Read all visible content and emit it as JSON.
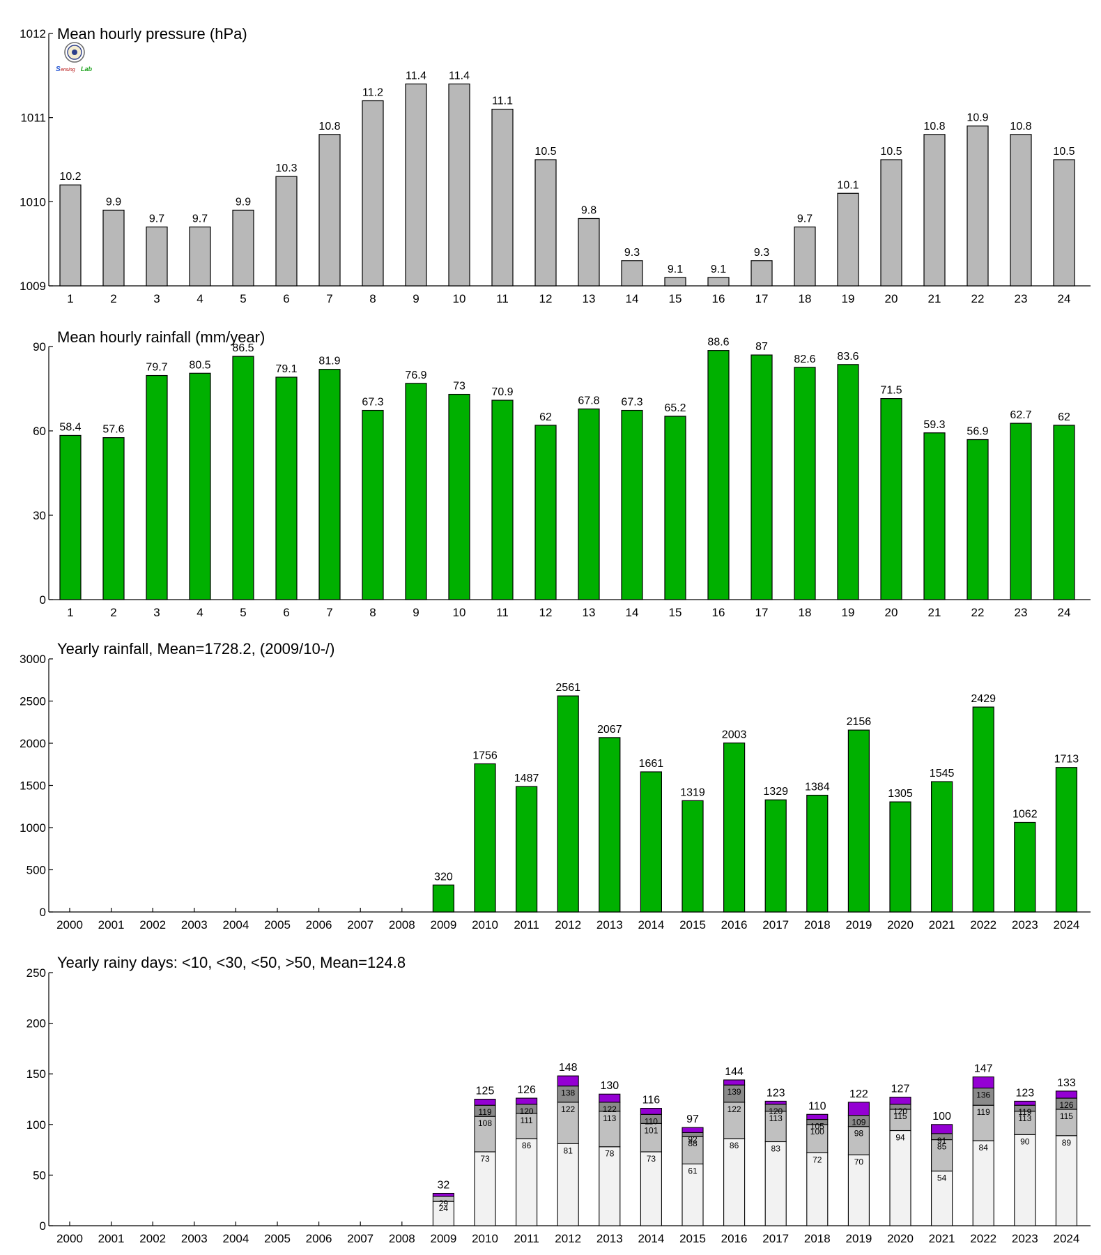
{
  "colors": {
    "pressure_bar": "#b8b8b8",
    "rain_bar": "#00b000",
    "seg1": "#f2f2f2",
    "seg2": "#c0c0c0",
    "seg3": "#8a8a8a",
    "seg4": "#9400d3",
    "outline": "#000000"
  },
  "logo": {
    "text": "Sensing Lab",
    "icon": "seal-logo-icon"
  },
  "chart_data": [
    {
      "type": "bar",
      "title": "Mean hourly pressure (hPa)",
      "categories": [
        "1",
        "2",
        "3",
        "4",
        "5",
        "6",
        "7",
        "8",
        "9",
        "10",
        "11",
        "12",
        "13",
        "14",
        "15",
        "16",
        "17",
        "18",
        "19",
        "20",
        "21",
        "22",
        "23",
        "24"
      ],
      "values": [
        1010.2,
        1009.9,
        1009.7,
        1009.7,
        1009.9,
        1010.3,
        1010.8,
        1011.2,
        1011.4,
        1011.4,
        1011.1,
        1010.5,
        1009.8,
        1009.3,
        1009.1,
        1009.1,
        1009.3,
        1009.7,
        1010.1,
        1010.5,
        1010.8,
        1010.9,
        1010.8,
        1010.5
      ],
      "labels": [
        "10.2",
        "9.9",
        "9.7",
        "9.7",
        "9.9",
        "10.3",
        "10.8",
        "11.2",
        "11.4",
        "11.4",
        "11.1",
        "10.5",
        "9.8",
        "9.3",
        "9.1",
        "9.1",
        "9.3",
        "9.7",
        "10.1",
        "10.5",
        "10.8",
        "10.9",
        "10.8",
        "10.5"
      ],
      "ylim": [
        1009,
        1012
      ],
      "yticks": [
        "1009",
        "1010",
        "1011",
        "1012"
      ],
      "grid": false
    },
    {
      "type": "bar",
      "title": "Mean hourly rainfall (mm/year)",
      "categories": [
        "1",
        "2",
        "3",
        "4",
        "5",
        "6",
        "7",
        "8",
        "9",
        "10",
        "11",
        "12",
        "13",
        "14",
        "15",
        "16",
        "17",
        "18",
        "19",
        "20",
        "21",
        "22",
        "23",
        "24"
      ],
      "values": [
        58.4,
        57.6,
        79.7,
        80.5,
        86.5,
        79.1,
        81.9,
        67.3,
        76.9,
        73,
        70.9,
        62,
        67.8,
        67.3,
        65.2,
        88.6,
        87,
        82.6,
        83.6,
        71.5,
        59.3,
        56.9,
        62.7,
        62
      ],
      "labels": [
        "58.4",
        "57.6",
        "79.7",
        "80.5",
        "86.5",
        "79.1",
        "81.9",
        "67.3",
        "76.9",
        "73",
        "70.9",
        "62",
        "67.8",
        "67.3",
        "65.2",
        "88.6",
        "87",
        "82.6",
        "83.6",
        "71.5",
        "59.3",
        "56.9",
        "62.7",
        "62"
      ],
      "ylim": [
        0,
        90
      ],
      "yticks": [
        "0",
        "30",
        "60",
        "90"
      ],
      "grid": false
    },
    {
      "type": "bar",
      "title": "Yearly rainfall, Mean=1728.2, (2009/10-/)",
      "categories": [
        "2000",
        "2001",
        "2002",
        "2003",
        "2004",
        "2005",
        "2006",
        "2007",
        "2008",
        "2009",
        "2010",
        "2011",
        "2012",
        "2013",
        "2014",
        "2015",
        "2016",
        "2017",
        "2018",
        "2019",
        "2020",
        "2021",
        "2022",
        "2023",
        "2024"
      ],
      "values": [
        0,
        0,
        0,
        0,
        0,
        0,
        0,
        0,
        0,
        320,
        1756,
        1487,
        2561,
        2067,
        1661,
        1319,
        2003,
        1329,
        1384,
        2156,
        1305,
        1545,
        2429,
        1062,
        1713
      ],
      "labels": [
        "",
        "",
        "",
        "",
        "",
        "",
        "",
        "",
        "",
        "320",
        "1756",
        "1487",
        "2561",
        "2067",
        "1661",
        "1319",
        "2003",
        "1329",
        "1384",
        "2156",
        "1305",
        "1545",
        "2429",
        "1062",
        "1713"
      ],
      "ylim": [
        0,
        3000
      ],
      "yticks": [
        "0",
        "500",
        "1000",
        "1500",
        "2000",
        "2500",
        "3000"
      ],
      "grid": false
    },
    {
      "type": "bar",
      "stacked": true,
      "title": "Yearly rainy days: <10, <30, <50, >50, Mean=124.8",
      "categories": [
        "2000",
        "2001",
        "2002",
        "2003",
        "2004",
        "2005",
        "2006",
        "2007",
        "2008",
        "2009",
        "2010",
        "2011",
        "2012",
        "2013",
        "2014",
        "2015",
        "2016",
        "2017",
        "2018",
        "2019",
        "2020",
        "2021",
        "2022",
        "2023",
        "2024"
      ],
      "cumulative": [
        [
          0,
          0,
          0,
          0
        ],
        [
          0,
          0,
          0,
          0
        ],
        [
          0,
          0,
          0,
          0
        ],
        [
          0,
          0,
          0,
          0
        ],
        [
          0,
          0,
          0,
          0
        ],
        [
          0,
          0,
          0,
          0
        ],
        [
          0,
          0,
          0,
          0
        ],
        [
          0,
          0,
          0,
          0
        ],
        [
          0,
          0,
          0,
          0
        ],
        [
          24,
          29,
          29,
          32
        ],
        [
          73,
          108,
          119,
          125
        ],
        [
          86,
          111,
          120,
          126
        ],
        [
          81,
          122,
          138,
          148
        ],
        [
          78,
          113,
          122,
          130
        ],
        [
          73,
          101,
          110,
          116
        ],
        [
          61,
          88,
          92,
          97
        ],
        [
          86,
          122,
          139,
          144
        ],
        [
          83,
          113,
          120,
          123
        ],
        [
          72,
          100,
          105,
          110
        ],
        [
          70,
          98,
          109,
          122
        ],
        [
          94,
          115,
          120,
          127
        ],
        [
          54,
          85,
          91,
          100
        ],
        [
          84,
          119,
          136,
          147
        ],
        [
          90,
          113,
          119,
          123
        ],
        [
          89,
          115,
          126,
          133
        ]
      ],
      "segment_labels": [
        [
          "",
          "",
          ""
        ],
        [
          "",
          "",
          ""
        ],
        [
          "",
          "",
          ""
        ],
        [
          "",
          "",
          ""
        ],
        [
          "",
          "",
          ""
        ],
        [
          "",
          "",
          ""
        ],
        [
          "",
          "",
          ""
        ],
        [
          "",
          "",
          ""
        ],
        [
          "",
          "",
          ""
        ],
        [
          "24",
          "29",
          ""
        ],
        [
          "73",
          "108",
          "119"
        ],
        [
          "86",
          "111",
          "120"
        ],
        [
          "81",
          "122",
          "138"
        ],
        [
          "78",
          "113",
          "122"
        ],
        [
          "73",
          "101",
          "110"
        ],
        [
          "61",
          "88",
          "92"
        ],
        [
          "86",
          "122",
          "139"
        ],
        [
          "83",
          "113",
          "120"
        ],
        [
          "72",
          "100",
          "105"
        ],
        [
          "70",
          "98",
          "109"
        ],
        [
          "94",
          "115",
          "120"
        ],
        [
          "54",
          "85",
          "91"
        ],
        [
          "84",
          "119",
          "136"
        ],
        [
          "90",
          "113",
          "119"
        ],
        [
          "89",
          "115",
          "126"
        ]
      ],
      "totals": [
        "",
        "",
        "",
        "",
        "",
        "",
        "",
        "",
        "",
        "32",
        "125",
        "126",
        "148",
        "130",
        "116",
        "97",
        "144",
        "123",
        "110",
        "122",
        "127",
        "100",
        "147",
        "123",
        "133"
      ],
      "ylim": [
        0,
        250
      ],
      "yticks": [
        "0",
        "50",
        "100",
        "150",
        "200",
        "250"
      ],
      "grid": false
    }
  ]
}
